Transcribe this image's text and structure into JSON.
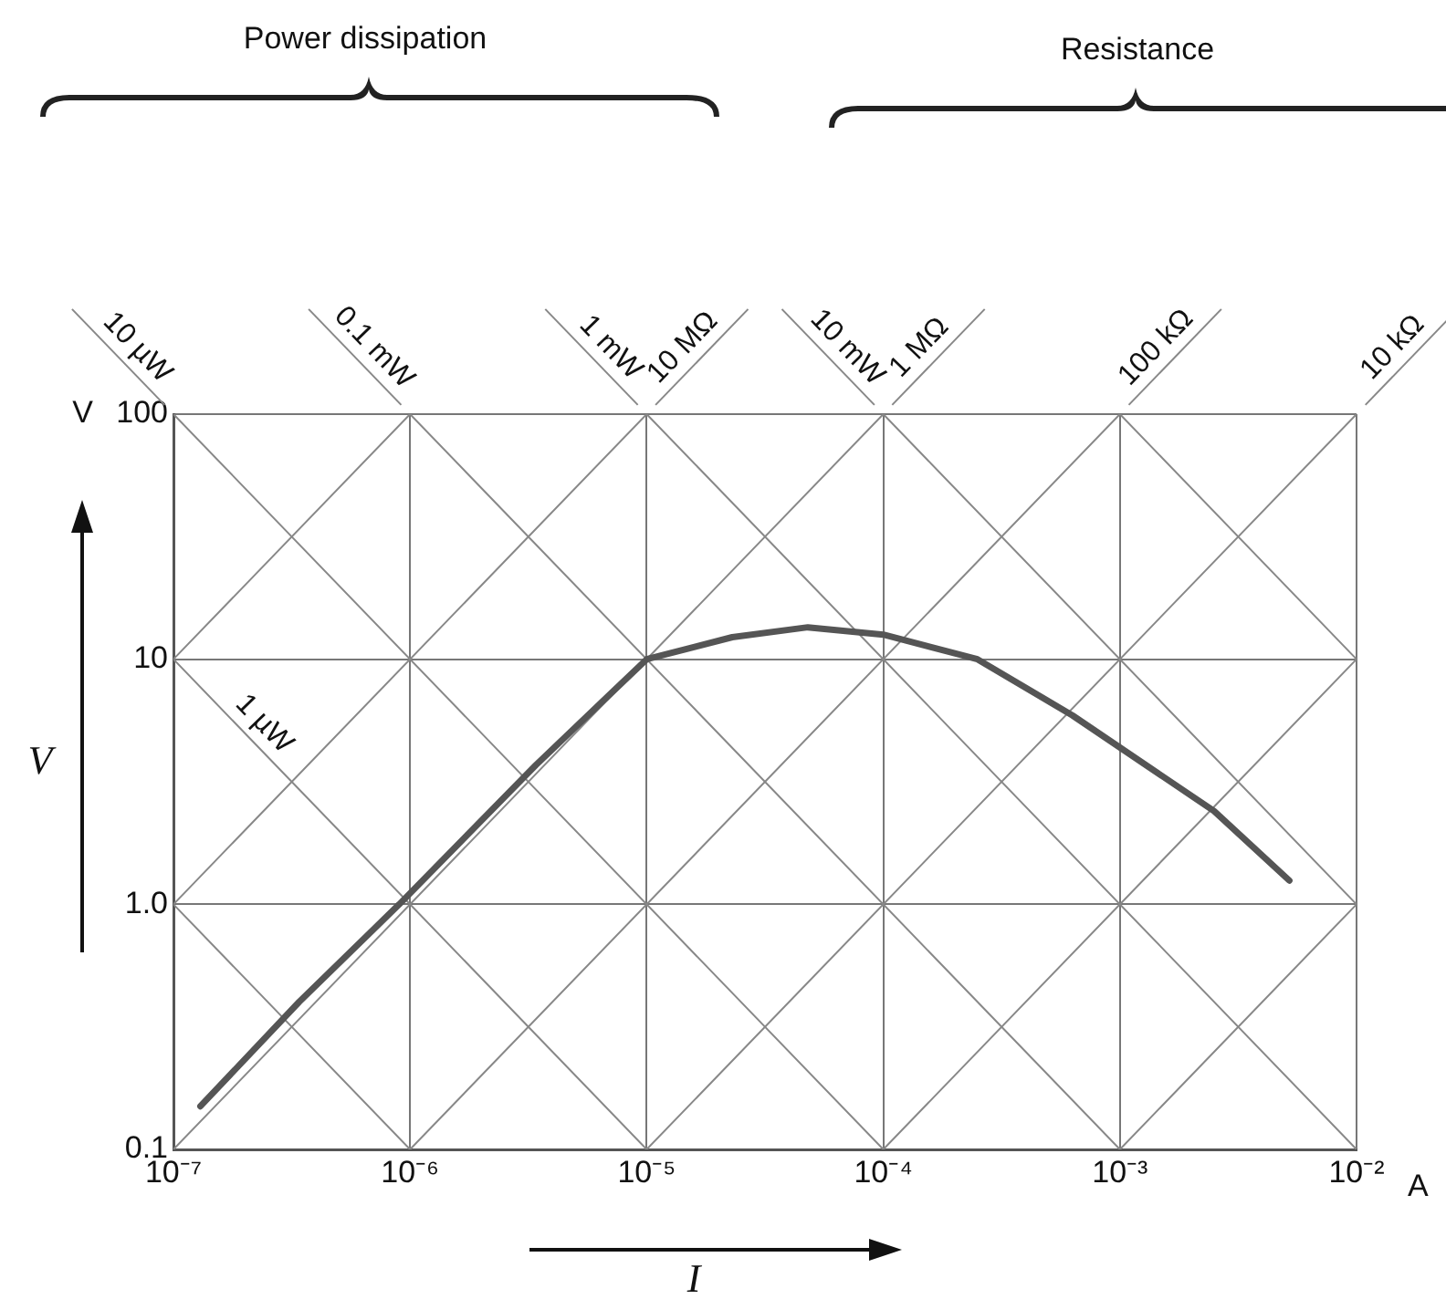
{
  "chart_data": {
    "type": "line",
    "xlabel": "I",
    "ylabel": "V",
    "log": "xy",
    "grid": true,
    "legend": false,
    "marker": "none",
    "line_style": "solid",
    "xlim": [
      1e-07,
      0.01
    ],
    "ylim": [
      0.1,
      100
    ],
    "xticks": [
      {
        "value": 1e-07,
        "label": "10⁻⁷"
      },
      {
        "value": 1e-06,
        "label": "10⁻⁶"
      },
      {
        "value": 1e-05,
        "label": "10⁻⁵"
      },
      {
        "value": 0.0001,
        "label": "10⁻⁴"
      },
      {
        "value": 0.001,
        "label": "10⁻³"
      },
      {
        "value": 0.01,
        "label": "10⁻²"
      }
    ],
    "yticks": [
      0.1,
      {
        "value": 1,
        "label": "1.0"
      },
      10,
      100
    ],
    "annotations": [
      "Power dissipation",
      "Resistance",
      "V",
      "A"
    ],
    "series": [
      {
        "color": "#555555",
        "x": [
          1.3e-07,
          3.4e-07,
          9e-07,
          3.4e-06,
          1e-05,
          2.3e-05,
          4.8e-05,
          0.0001,
          0.00025,
          0.00063,
          0.0025,
          0.0052
        ],
        "values": [
          0.15,
          0.4,
          1,
          3.7,
          10,
          12.3,
          13.5,
          12.6,
          10,
          5.9,
          2.4,
          1.25
        ]
      },
      {
        "color": "#888888",
        "x": [
          1e-07,
          1e-06
        ],
        "values": [
          1,
          0.1
        ]
      },
      {
        "name": "1 µW",
        "color": "#888888",
        "x": [
          1e-07,
          1e-05
        ],
        "values": [
          10,
          0.1
        ]
      },
      {
        "name": "10 µW",
        "color": "#888888",
        "x": [
          1e-07,
          0.0001
        ],
        "values": [
          100,
          0.1
        ]
      },
      {
        "name": "0.1 mW",
        "color": "#888888",
        "x": [
          1e-06,
          0.001
        ],
        "values": [
          100,
          0.1
        ]
      },
      {
        "name": "1 mW",
        "color": "#888888",
        "x": [
          1e-05,
          0.01
        ],
        "values": [
          100,
          0.1
        ]
      },
      {
        "name": "10 mW",
        "color": "#888888",
        "x": [
          0.0001,
          0.01
        ],
        "values": [
          100,
          1
        ]
      },
      {
        "color": "#888888",
        "x": [
          0.001,
          0.01
        ],
        "values": [
          100,
          10
        ]
      },
      {
        "color": "#888888",
        "x": [
          1e-07,
          1e-06
        ],
        "values": [
          10,
          100
        ]
      },
      {
        "name": "10 MΩ",
        "color": "#888888",
        "x": [
          1e-07,
          1e-05
        ],
        "values": [
          1,
          100
        ]
      },
      {
        "name": "1 MΩ",
        "color": "#888888",
        "x": [
          1e-07,
          0.0001
        ],
        "values": [
          0.1,
          100
        ]
      },
      {
        "name": "100 kΩ",
        "color": "#888888",
        "x": [
          1e-06,
          0.001
        ],
        "values": [
          0.1,
          100
        ]
      },
      {
        "name": "10 kΩ",
        "color": "#888888",
        "x": [
          1e-05,
          0.01
        ],
        "values": [
          0.1,
          100
        ]
      },
      {
        "color": "#888888",
        "x": [
          0.0001,
          0.01
        ],
        "values": [
          0.1,
          10
        ]
      },
      {
        "color": "#888888",
        "x": [
          0.001,
          0.01
        ],
        "values": [
          0.1,
          1
        ]
      }
    ]
  }
}
